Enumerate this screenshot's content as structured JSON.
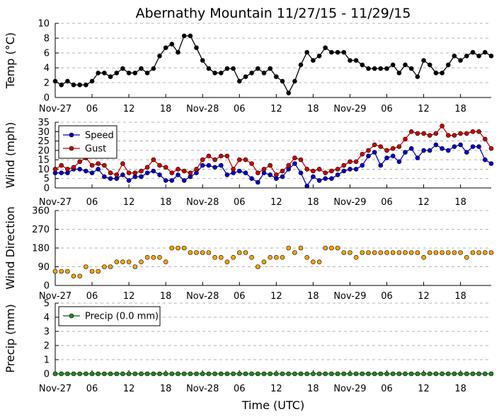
{
  "chart_data": {
    "title": "Abernathy Mountain 11/27/15 - 11/29/15",
    "xlabel": "Time (UTC)",
    "x_tick_labels": [
      "Nov-27",
      "06",
      "12",
      "18",
      "Nov-28",
      "06",
      "12",
      "18",
      "Nov-29",
      "06",
      "12",
      "18"
    ],
    "x_tick_hours": [
      0,
      6,
      12,
      18,
      24,
      30,
      36,
      42,
      48,
      54,
      60,
      66
    ],
    "x_range_hours": [
      0,
      71
    ],
    "time_step_hours": 1,
    "panels": [
      {
        "id": "temp",
        "type": "line",
        "ylabel": "Temp (°C)",
        "ylim": [
          0,
          10
        ],
        "yticks": [
          0,
          2,
          4,
          6,
          8,
          10
        ],
        "grid": true,
        "legend": null,
        "series": [
          {
            "name": "Temp",
            "color": "#000000",
            "values": [
              2.2,
              1.7,
              2.2,
              1.7,
              1.7,
              1.7,
              2.2,
              3.3,
              3.3,
              2.8,
              3.3,
              3.9,
              3.3,
              3.3,
              3.9,
              3.3,
              3.9,
              5.6,
              6.7,
              7.2,
              6.1,
              8.3,
              8.3,
              6.7,
              5.0,
              3.9,
              3.3,
              3.3,
              3.9,
              3.9,
              2.2,
              2.8,
              3.3,
              3.9,
              3.3,
              3.9,
              2.8,
              2.2,
              0.6,
              2.2,
              4.4,
              6.1,
              5.0,
              5.6,
              6.7,
              6.1,
              6.1,
              6.1,
              5.0,
              5.0,
              4.4,
              3.9,
              3.9,
              3.9,
              3.9,
              4.4,
              3.3,
              4.4,
              3.9,
              2.8,
              5.0,
              4.4,
              3.3,
              3.3,
              4.4,
              5.6,
              5.0,
              5.6,
              6.1,
              5.6,
              6.1,
              5.6
            ]
          }
        ]
      },
      {
        "id": "wind",
        "type": "line",
        "ylabel": "Wind (mph)",
        "ylim": [
          0,
          35
        ],
        "yticks": [
          0,
          5,
          10,
          15,
          20,
          25,
          30,
          35
        ],
        "grid": true,
        "legend": {
          "placement": "upper-left",
          "entries": [
            "Speed",
            "Gust"
          ]
        },
        "series": [
          {
            "name": "Speed",
            "color": "#0000cc",
            "values": [
              8,
              8,
              8,
              10,
              10,
              9,
              8,
              10,
              6,
              5,
              5,
              7,
              4,
              6,
              6,
              8,
              9,
              7,
              4,
              4,
              7,
              4,
              6,
              8,
              12,
              12,
              11,
              12,
              7,
              8,
              9,
              8,
              5,
              3,
              8,
              7,
              5,
              6,
              10,
              13,
              8,
              1,
              6,
              4,
              5,
              5,
              7,
              9,
              10,
              10,
              12,
              17,
              19,
              12,
              16,
              17,
              14,
              19,
              21,
              16,
              20,
              20,
              23,
              21,
              20,
              22,
              23,
              19,
              22,
              22,
              15,
              13
            ]
          },
          {
            "name": "Gust",
            "color": "#cc0000",
            "values": [
              10,
              12,
              10,
              11,
              14,
              16,
              12,
              13,
              12,
              8,
              7,
              13,
              8,
              8,
              9,
              11,
              15,
              12,
              11,
              8,
              10,
              9,
              8,
              10,
              15,
              17,
              15,
              17,
              17,
              10,
              15,
              15,
              13,
              8,
              10,
              12,
              7,
              9,
              12,
              16,
              15,
              10,
              9,
              10,
              8,
              9,
              10,
              12,
              14,
              14,
              18,
              20,
              23,
              22,
              20,
              21,
              22,
              26,
              30,
              29,
              29,
              28,
              29,
              33,
              28,
              28,
              29,
              29,
              30,
              30,
              26,
              21
            ]
          }
        ]
      },
      {
        "id": "direction",
        "type": "scatter",
        "ylabel": "Wind Direction",
        "ylim": [
          0,
          360
        ],
        "yticks": [
          0,
          90,
          180,
          270,
          360
        ],
        "grid": true,
        "legend": null,
        "series": [
          {
            "name": "Direction",
            "color": "#ffa500",
            "values": [
              68,
              68,
              68,
              45,
              45,
              90,
              68,
              68,
              90,
              90,
              113,
              113,
              113,
              90,
              113,
              135,
              135,
              135,
              113,
              180,
              180,
              180,
              158,
              158,
              158,
              158,
              135,
              135,
              113,
              135,
              158,
              158,
              135,
              90,
              113,
              135,
              135,
              135,
              180,
              158,
              180,
              135,
              113,
              113,
              180,
              180,
              180,
              158,
              158,
              135,
              158,
              158,
              158,
              158,
              158,
              158,
              158,
              158,
              158,
              158,
              135,
              158,
              158,
              158,
              158,
              158,
              158,
              135,
              158,
              158,
              158,
              158
            ]
          }
        ]
      },
      {
        "id": "precip",
        "type": "line",
        "ylabel": "Precip (mm)",
        "ylim": [
          0,
          5
        ],
        "yticks": [
          0,
          1,
          2,
          3,
          4,
          5
        ],
        "grid": true,
        "legend": {
          "placement": "upper-left",
          "entries": [
            "Precip (0.0 mm)"
          ]
        },
        "series": [
          {
            "name": "Precip (0.0 mm)",
            "color": "#006400",
            "marker_color": "#228b22",
            "values": [
              0,
              0,
              0,
              0,
              0,
              0,
              0,
              0,
              0,
              0,
              0,
              0,
              0,
              0,
              0,
              0,
              0,
              0,
              0,
              0,
              0,
              0,
              0,
              0,
              0,
              0,
              0,
              0,
              0,
              0,
              0,
              0,
              0,
              0,
              0,
              0,
              0,
              0,
              0,
              0,
              0,
              0,
              0,
              0,
              0,
              0,
              0,
              0,
              0,
              0,
              0,
              0,
              0,
              0,
              0,
              0,
              0,
              0,
              0,
              0,
              0,
              0,
              0,
              0,
              0,
              0,
              0,
              0,
              0,
              0,
              0,
              0
            ]
          }
        ]
      }
    ]
  }
}
